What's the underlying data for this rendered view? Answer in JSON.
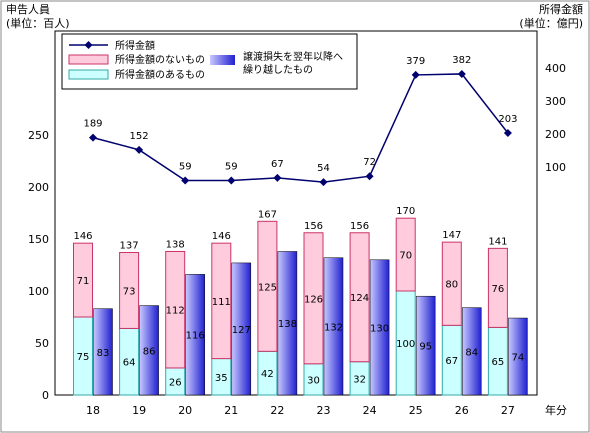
{
  "chart_data": {
    "type": "bar",
    "left_axis_label": [
      "申告人員",
      "(単位：百人)"
    ],
    "right_axis_label": [
      "所得金額",
      "(単位：億円)"
    ],
    "x_unit_label": "年分",
    "categories": [
      "18",
      "19",
      "20",
      "21",
      "22",
      "23",
      "24",
      "25",
      "26",
      "27"
    ],
    "left_ylim": [
      0,
      250
    ],
    "left_ticks": [
      "0",
      "50",
      "100",
      "150",
      "200",
      "250"
    ],
    "right_ylim": [
      0,
      400
    ],
    "right_ticks": [
      "100",
      "200",
      "300",
      "400"
    ],
    "legend": {
      "income": "所得金額",
      "no_income": "所得金額のないもの",
      "with_income": "所得金額のあるもの",
      "carryover": [
        "譲渡損失を翌年以降へ",
        "繰り越したもの"
      ]
    },
    "series": [
      {
        "name": "所得金額のあるもの",
        "values": [
          75,
          64,
          26,
          35,
          42,
          30,
          32,
          100,
          67,
          65
        ]
      },
      {
        "name": "所得金額のないもの",
        "values": [
          71,
          73,
          112,
          111,
          125,
          126,
          124,
          70,
          80,
          76
        ]
      },
      {
        "name": "totals",
        "values": [
          146,
          137,
          138,
          146,
          167,
          156,
          156,
          170,
          147,
          141
        ]
      },
      {
        "name": "譲渡損失を翌年以降へ繰り越したもの",
        "values": [
          83,
          86,
          116,
          127,
          138,
          132,
          130,
          95,
          84,
          74
        ]
      },
      {
        "name": "所得金額",
        "values": [
          189,
          152,
          59,
          59,
          67,
          54,
          72,
          379,
          382,
          203
        ]
      }
    ],
    "colors": {
      "with_income_fill": "#ccffff",
      "with_income_edge": "#33aaaa",
      "no_income_fill": "#ffccdd",
      "no_income_edge": "#cc3366",
      "carryover_light": "#c8c8ff",
      "carryover_dark": "#2020d0",
      "line": "#00006e"
    }
  }
}
